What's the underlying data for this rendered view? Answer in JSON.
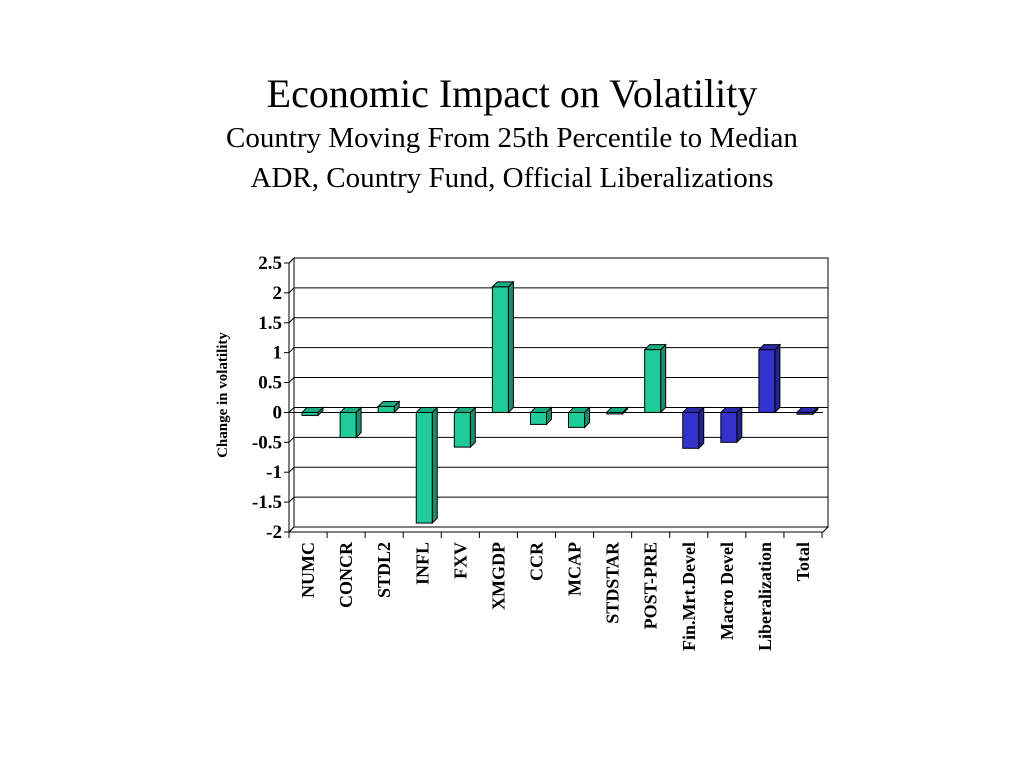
{
  "slide": {
    "title": "Economic Impact on Volatility",
    "subtitle_line1": "Country Moving From 25th Percentile to Median",
    "subtitle_line2": "ADR, Country Fund, Official Liberalizations"
  },
  "chart_data": {
    "type": "bar",
    "title": "",
    "xlabel": "",
    "ylabel": "Change in volatility",
    "ylim": [
      -2,
      2.5
    ],
    "yticks": [
      2.5,
      2,
      1.5,
      1,
      0.5,
      0,
      -0.5,
      -1,
      -1.5,
      -2
    ],
    "ytick_labels": [
      "2.5",
      "2",
      "1.5",
      "1",
      "0.5",
      "0",
      "-0.5",
      "-1",
      "-1.5",
      "-2"
    ],
    "grid": true,
    "categories": [
      "NUMC",
      "CONCR",
      "STDL2",
      "INFL",
      "FXV",
      "XMGDP",
      "CCR",
      "MCAP",
      "STDSTAR",
      "POST-PRE",
      "Fin.Mrt.Devel",
      "Macro Devel",
      "Liberalization",
      "Total"
    ],
    "values": [
      -0.05,
      -0.42,
      0.1,
      -1.85,
      -0.58,
      2.1,
      -0.2,
      -0.25,
      0.0,
      1.05,
      -0.6,
      -0.5,
      1.05,
      -0.03
    ],
    "bar_colors": [
      "#1fcc99",
      "#1fcc99",
      "#1fcc99",
      "#1fcc99",
      "#1fcc99",
      "#1fcc99",
      "#1fcc99",
      "#1fcc99",
      "#1fcc99",
      "#1fcc99",
      "#3333cc",
      "#3333cc",
      "#3333cc",
      "#3333cc"
    ]
  }
}
